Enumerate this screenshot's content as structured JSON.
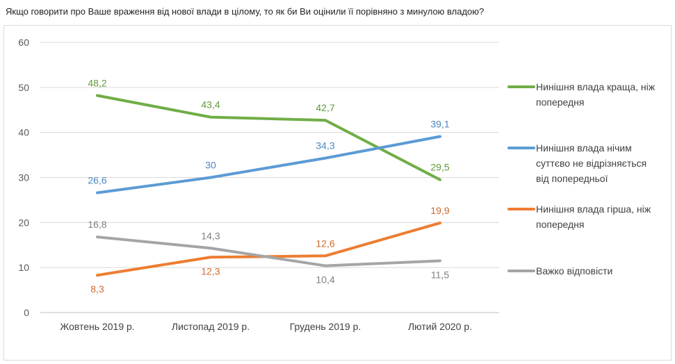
{
  "chart_data": {
    "type": "line",
    "title": "Якщо говорити про Ваше враження від нової влади в цілому, то як би Ви оцінили її порівняно з минулою владою?",
    "categories": [
      "Жовтень 2019 р.",
      "Листопад 2019 р.",
      "Грудень 2019 р.",
      "Лютий 2020 р."
    ],
    "ylim": [
      0,
      60
    ],
    "yticks": [
      0,
      10,
      20,
      30,
      40,
      50,
      60
    ],
    "grid": true,
    "legend_position": "right",
    "series": [
      {
        "name": "Нинішня влада краща, ніж попередня",
        "color": "#70ad47",
        "label_color": "#5f9a3a",
        "values": [
          48.2,
          43.4,
          42.7,
          29.5
        ],
        "labels": [
          "48,2",
          "43,4",
          "42,7",
          "29,5"
        ]
      },
      {
        "name": "Нинішня влада нічим суттєво не відрізняється від попередньої",
        "color": "#5b9bd5",
        "label_color": "#4a86c0",
        "values": [
          26.6,
          30,
          34.3,
          39.1
        ],
        "labels": [
          "26,6",
          "30",
          "34,3",
          "39,1"
        ]
      },
      {
        "name": "Нинішня влада гірша, ніж попередня",
        "color": "#ed7d31",
        "label_color": "#d0692a",
        "values": [
          8.3,
          12.3,
          12.6,
          19.9
        ],
        "labels": [
          "8,3",
          "12,3",
          "12,6",
          "19,9"
        ]
      },
      {
        "name": "Важко відповісти",
        "color": "#a5a5a5",
        "label_color": "#7f7f7f",
        "values": [
          16.8,
          14.3,
          10.4,
          11.5
        ],
        "labels": [
          "16,8",
          "14,3",
          "10,4",
          "11,5"
        ]
      }
    ]
  }
}
